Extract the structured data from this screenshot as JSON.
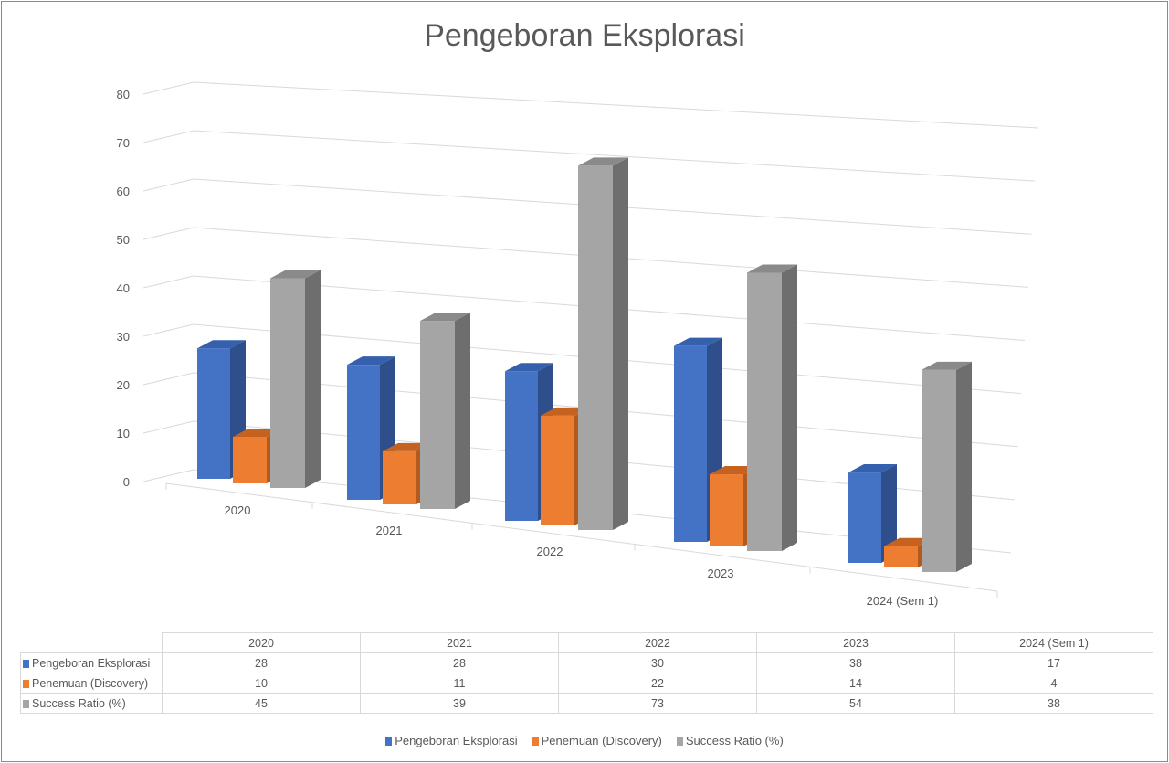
{
  "chart_data": {
    "type": "bar",
    "title": "Pengeboran Eksplorasi",
    "categories": [
      "2020",
      "2021",
      "2022",
      "2023",
      "2024 (Sem 1)"
    ],
    "series": [
      {
        "name": "Pengeboran Eksplorasi",
        "values": [
          28,
          28,
          30,
          38,
          17
        ],
        "color": "#4472c4",
        "side": "#2e4f8c",
        "top": "#3560ad"
      },
      {
        "name": "Penemuan (Discovery)",
        "values": [
          10,
          11,
          22,
          14,
          4
        ],
        "color": "#ed7d31",
        "side": "#b35a1f",
        "top": "#c6621f"
      },
      {
        "name": "Success Ratio (%)",
        "values": [
          45,
          39,
          73,
          54,
          38
        ],
        "color": "#a5a5a5",
        "side": "#6e6e6e",
        "top": "#8a8a8a"
      }
    ],
    "yticks": [
      "0",
      "10",
      "20",
      "30",
      "40",
      "50",
      "60",
      "70",
      "80"
    ],
    "ylim": [
      0,
      80
    ],
    "legend_position": "bottom",
    "grid": true
  }
}
